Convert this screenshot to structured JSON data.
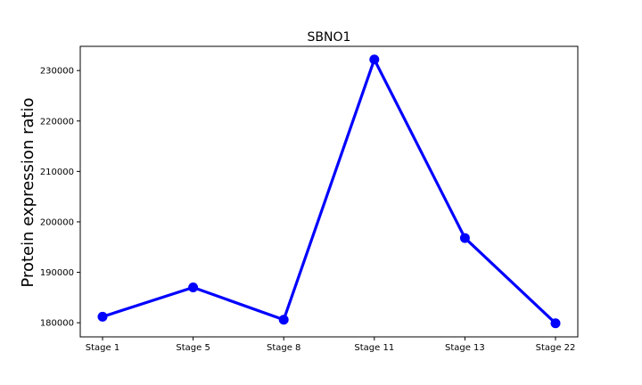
{
  "chart_data": {
    "type": "line",
    "title": "SBNO1",
    "xlabel": "",
    "ylabel": "Protein expression ratio",
    "categories": [
      "Stage 1",
      "Stage 5",
      "Stage 8",
      "Stage 11",
      "Stage 13",
      "Stage 22"
    ],
    "series": [
      {
        "values": [
          181200,
          187000,
          180600,
          232200,
          196800,
          179900
        ],
        "color": "#0000ff"
      }
    ],
    "ylim": [
      177200,
      234800
    ],
    "yticks": [
      180000,
      190000,
      200000,
      210000,
      220000,
      230000
    ],
    "ytick_labels": [
      "180000",
      "190000",
      "200000",
      "210000",
      "220000",
      "230000"
    ],
    "grid": false,
    "legend": "none"
  }
}
